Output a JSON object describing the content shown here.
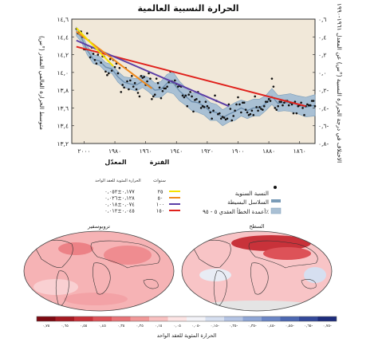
{
  "figure": {
    "title": "الحرارة النسبية العالمية",
    "yaxis_left_title": "متوسط الحرارة العالمي المقدر (°س)",
    "yaxis_right_title": "الاختلاف في درجة الحرارة النسبية (°س) عن المعدل ١٩٦١-١٩٩٠",
    "legend_period_header": "الفترة",
    "legend_period_unit": "سنوات",
    "legend_rate_header": "المعدّل",
    "legend_rate_unit": "الحرارة المئوية للعقد الواحد",
    "legend_items": [
      {
        "period": "٢٥",
        "rate": "٠,١٧٧±٠,٠٥٢",
        "color": "#f5e200"
      },
      {
        "period": "٥٠",
        "rate": "٠,١٢٨±٠,٠٢٦",
        "color": "#f08a1c"
      },
      {
        "period": "١٠٠",
        "rate": "٠,٠٧٤±٠,٠١٨",
        "color": "#5b3ea6"
      },
      {
        "period": "١٥٠",
        "rate": "٠,٠٤٥±٠,٠١٢",
        "color": "#e0211c"
      }
    ],
    "legend_series": [
      {
        "label": "النسبة السنوية",
        "kind": "dot"
      },
      {
        "label": "السلاسل البسيطة",
        "kind": "line",
        "color": "#7a9cb8"
      },
      {
        "label": "أعمدة الخطأ العقدي ٥ - ٩٥٪",
        "kind": "band",
        "color": "#a9c0d4"
      }
    ],
    "map_left_title": "تروبوسفير",
    "map_right_title": "السطح",
    "colorbar_labels": [
      "٠,٧٥",
      "٠,٦٥",
      "٠,٥٥",
      "٠,٤٥",
      "٠,٣٥",
      "٠,٢٥",
      "٠,١٥",
      "٠,٠٥",
      "٠,٠٥-",
      "٠,١٥-",
      "٠,٢٥-",
      "٠,٣٥-",
      "٠,٤٥-",
      "٠,٥٥-",
      "٠,٦٥-",
      "٠,٧٥-"
    ],
    "colorbar_colors": [
      "#7d0a12",
      "#a51a22",
      "#c8323a",
      "#dd5258",
      "#e87478",
      "#f19898",
      "#f8c0c0",
      "#fde4e4",
      "#f3f3f8",
      "#d6dff0",
      "#b4c4e4",
      "#8fa6d6",
      "#6b86c6",
      "#4c68b2",
      "#33499a",
      "#1d2c7c"
    ],
    "colorbar_title": "الحرارة المئوية للعقد الواحد"
  },
  "chart_data": {
    "type": "scatter",
    "title": "الحرارة النسبية العالمية",
    "x_ticks": [
      {
        "value": 2000,
        "label": "٢٠٠٠"
      },
      {
        "value": 1980,
        "label": "١٩٨٠"
      },
      {
        "value": 1960,
        "label": "١٩٦٠"
      },
      {
        "value": 1940,
        "label": "١٩٤٠"
      },
      {
        "value": 1920,
        "label": "١٩٢٠"
      },
      {
        "value": 1900,
        "label": "١٩٠٠"
      },
      {
        "value": 1880,
        "label": "١٨٨٠"
      },
      {
        "value": 1860,
        "label": "١٨٦٠"
      }
    ],
    "xlim": [
      2008,
      1850
    ],
    "y_left_ticks": [
      {
        "value": 14.6,
        "label": "١٤,٦"
      },
      {
        "value": 14.4,
        "label": "١٤,٤"
      },
      {
        "value": 14.2,
        "label": "١٤,٢"
      },
      {
        "value": 14.0,
        "label": "١٤,٠"
      },
      {
        "value": 13.8,
        "label": "١٣,٨"
      },
      {
        "value": 13.6,
        "label": "١٣,٦"
      },
      {
        "value": 13.4,
        "label": "١٣,٤"
      },
      {
        "value": 13.2,
        "label": "١٣,٢"
      }
    ],
    "ylim_left": [
      13.2,
      14.6
    ],
    "y_right_ticks": [
      {
        "value": 0.6,
        "label": "٠,٦"
      },
      {
        "value": 0.4,
        "label": "٠,٤"
      },
      {
        "value": 0.2,
        "label": "٠,٢"
      },
      {
        "value": 0.0,
        "label": "٠,٠"
      },
      {
        "value": -0.2,
        "label": "٠,٢-"
      },
      {
        "value": -0.4,
        "label": "٠,٤-"
      },
      {
        "value": -0.6,
        "label": "٠,٦-"
      },
      {
        "value": -0.8,
        "label": "٠,٨-"
      }
    ],
    "series": [
      {
        "name": "النسبة السنوية",
        "kind": "points",
        "x": [
          1850,
          1851,
          1852,
          1853,
          1854,
          1855,
          1856,
          1857,
          1858,
          1859,
          1860,
          1861,
          1862,
          1863,
          1864,
          1865,
          1866,
          1867,
          1868,
          1869,
          1870,
          1871,
          1872,
          1873,
          1874,
          1875,
          1876,
          1877,
          1878,
          1879,
          1880,
          1881,
          1882,
          1883,
          1884,
          1885,
          1886,
          1887,
          1888,
          1889,
          1890,
          1891,
          1892,
          1893,
          1894,
          1895,
          1896,
          1897,
          1898,
          1899,
          1900,
          1901,
          1902,
          1903,
          1904,
          1905,
          1906,
          1907,
          1908,
          1909,
          1910,
          1911,
          1912,
          1913,
          1914,
          1915,
          1916,
          1917,
          1918,
          1919,
          1920,
          1921,
          1922,
          1923,
          1924,
          1925,
          1926,
          1927,
          1928,
          1929,
          1930,
          1931,
          1932,
          1933,
          1934,
          1935,
          1936,
          1937,
          1938,
          1939,
          1940,
          1941,
          1942,
          1943,
          1944,
          1945,
          1946,
          1947,
          1948,
          1949,
          1950,
          1951,
          1952,
          1953,
          1954,
          1955,
          1956,
          1957,
          1958,
          1959,
          1960,
          1961,
          1962,
          1963,
          1964,
          1965,
          1966,
          1967,
          1968,
          1969,
          1970,
          1971,
          1972,
          1973,
          1974,
          1975,
          1976,
          1977,
          1978,
          1979,
          1980,
          1981,
          1982,
          1983,
          1984,
          1985,
          1986,
          1987,
          1988,
          1989,
          1990,
          1991,
          1992,
          1993,
          1994,
          1995,
          1996,
          1997,
          1998,
          1999,
          2000,
          2001,
          2002,
          2003,
          2004,
          2005
        ],
        "y": [
          13.62,
          13.68,
          13.68,
          13.63,
          13.63,
          13.64,
          13.62,
          13.52,
          13.6,
          13.66,
          13.63,
          13.62,
          13.54,
          13.67,
          13.54,
          13.64,
          13.66,
          13.63,
          13.68,
          13.68,
          13.66,
          13.63,
          13.67,
          13.67,
          13.62,
          13.58,
          13.6,
          13.84,
          13.93,
          13.68,
          13.7,
          13.67,
          13.67,
          13.62,
          13.58,
          13.59,
          13.61,
          13.57,
          13.61,
          13.73,
          13.52,
          13.57,
          13.53,
          13.52,
          13.55,
          13.58,
          13.66,
          13.66,
          13.55,
          13.64,
          13.72,
          13.64,
          13.57,
          13.51,
          13.46,
          13.59,
          13.64,
          13.48,
          13.47,
          13.49,
          13.5,
          13.48,
          13.54,
          13.53,
          13.68,
          13.74,
          13.57,
          13.48,
          13.55,
          13.6,
          13.62,
          13.67,
          13.61,
          13.62,
          13.6,
          13.67,
          13.78,
          13.7,
          13.69,
          13.56,
          13.73,
          13.78,
          13.75,
          13.62,
          13.74,
          13.72,
          13.74,
          13.84,
          13.85,
          13.84,
          13.87,
          13.91,
          13.89,
          13.9,
          14.01,
          13.89,
          13.84,
          13.82,
          13.82,
          13.79,
          13.71,
          13.83,
          13.88,
          13.93,
          13.75,
          13.73,
          13.7,
          13.93,
          13.99,
          13.9,
          13.86,
          13.95,
          13.94,
          13.96,
          13.73,
          13.77,
          13.81,
          13.88,
          13.84,
          13.96,
          13.91,
          13.81,
          13.9,
          14.05,
          13.83,
          13.86,
          13.78,
          14.05,
          13.99,
          14.1,
          14.06,
          14.14,
          14.02,
          14.15,
          13.99,
          13.97,
          14.01,
          14.18,
          14.18,
          14.11,
          14.25,
          14.2,
          14.1,
          14.14,
          14.21,
          14.28,
          14.17,
          14.36,
          14.44,
          14.26,
          14.26,
          14.4,
          14.46,
          14.46,
          14.44,
          14.49
        ]
      },
      {
        "name": "السلاسل البسيطة",
        "kind": "smooth",
        "x": [
          1850,
          1856,
          1862,
          1866,
          1870,
          1874,
          1878,
          1882,
          1886,
          1890,
          1894,
          1898,
          1902,
          1906,
          1910,
          1914,
          1918,
          1922,
          1926,
          1930,
          1934,
          1938,
          1942,
          1946,
          1950,
          1954,
          1958,
          1962,
          1966,
          1970,
          1974,
          1978,
          1982,
          1986,
          1990,
          1994,
          1998,
          2002,
          2005
        ],
        "y": [
          13.63,
          13.61,
          13.64,
          13.66,
          13.66,
          13.65,
          13.73,
          13.65,
          13.6,
          13.6,
          13.57,
          13.6,
          13.56,
          13.53,
          13.49,
          13.55,
          13.56,
          13.62,
          13.66,
          13.67,
          13.73,
          13.79,
          13.88,
          13.88,
          13.81,
          13.8,
          13.86,
          13.9,
          13.86,
          13.87,
          13.89,
          13.95,
          14.04,
          14.06,
          14.13,
          14.15,
          14.25,
          14.4,
          14.46
        ]
      },
      {
        "name": "أعمدة الخطأ العقدي ٥ - ٩٥٪",
        "kind": "band",
        "x": [
          1850,
          1856,
          1862,
          1866,
          1870,
          1874,
          1878,
          1882,
          1886,
          1890,
          1894,
          1898,
          1902,
          1906,
          1910,
          1914,
          1918,
          1922,
          1926,
          1930,
          1934,
          1938,
          1942,
          1946,
          1950,
          1954,
          1958,
          1962,
          1966,
          1970,
          1974,
          1978,
          1982,
          1986,
          1990,
          1994,
          1998,
          2002,
          2005
        ],
        "upper": [
          13.75,
          13.72,
          13.74,
          13.76,
          13.75,
          13.74,
          13.82,
          13.74,
          13.7,
          13.7,
          13.67,
          13.69,
          13.66,
          13.62,
          13.58,
          13.64,
          13.66,
          13.72,
          13.77,
          13.77,
          13.83,
          13.9,
          14.0,
          13.98,
          13.9,
          13.88,
          13.94,
          13.97,
          13.93,
          13.94,
          13.95,
          14.01,
          14.09,
          14.11,
          14.18,
          14.2,
          14.3,
          14.45,
          14.51
        ],
        "lower": [
          13.51,
          13.5,
          13.54,
          13.56,
          13.57,
          13.56,
          13.64,
          13.57,
          13.51,
          13.51,
          13.48,
          13.51,
          13.46,
          13.44,
          13.4,
          13.46,
          13.46,
          13.52,
          13.55,
          13.57,
          13.63,
          13.68,
          13.76,
          13.78,
          13.72,
          13.72,
          13.78,
          13.83,
          13.79,
          13.81,
          13.83,
          13.89,
          13.99,
          14.01,
          14.08,
          14.1,
          14.2,
          14.35,
          14.41
        ]
      },
      {
        "name": "١٥٠",
        "kind": "trend",
        "color": "#e0211c",
        "x": [
          1856,
          2005
        ],
        "y": [
          13.62,
          14.29
        ]
      },
      {
        "name": "١٠٠",
        "kind": "trend",
        "color": "#5b3ea6",
        "x": [
          1906,
          2005
        ],
        "y": [
          13.62,
          14.36
        ]
      },
      {
        "name": "٥٠",
        "kind": "trend",
        "color": "#f08a1c",
        "x": [
          1956,
          2005
        ],
        "y": [
          13.82,
          14.46
        ]
      },
      {
        "name": "٢٥",
        "kind": "trend",
        "color": "#f5e200",
        "x": [
          1981,
          2005
        ],
        "y": [
          14.07,
          14.5
        ]
      }
    ]
  }
}
